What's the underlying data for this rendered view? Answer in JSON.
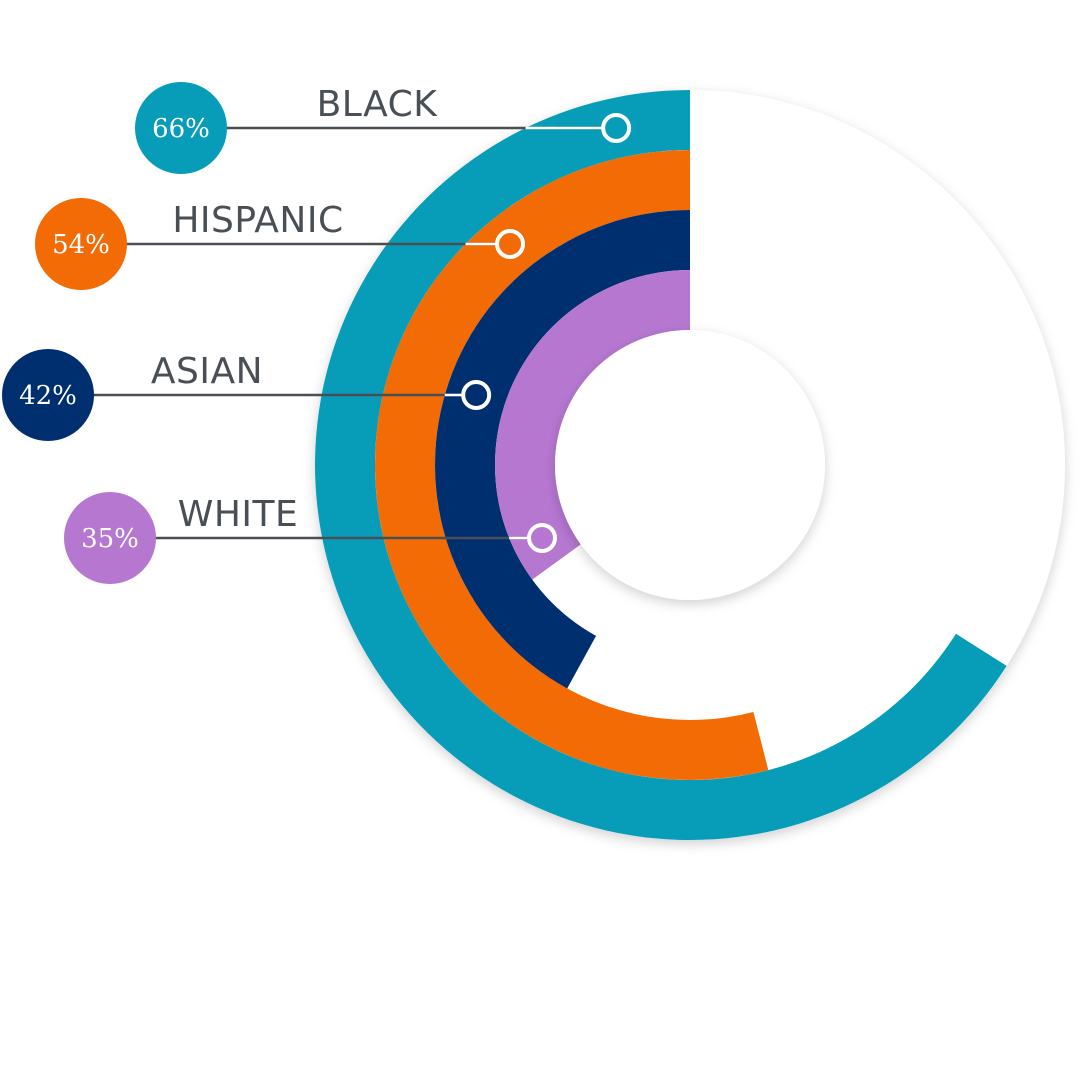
{
  "chart_data": {
    "type": "radial-bar",
    "title": "",
    "unit": "%",
    "max": 100,
    "series": [
      {
        "name": "BLACK",
        "value": 66,
        "display": "66%",
        "color": "#079db8"
      },
      {
        "name": "HISPANIC",
        "value": 54,
        "display": "54%",
        "color": "#f26b05"
      },
      {
        "name": "ASIAN",
        "value": 42,
        "display": "42%",
        "color": "#002f70"
      },
      {
        "name": "WHITE",
        "value": 35,
        "display": "35%",
        "color": "#b677d1"
      }
    ]
  }
}
